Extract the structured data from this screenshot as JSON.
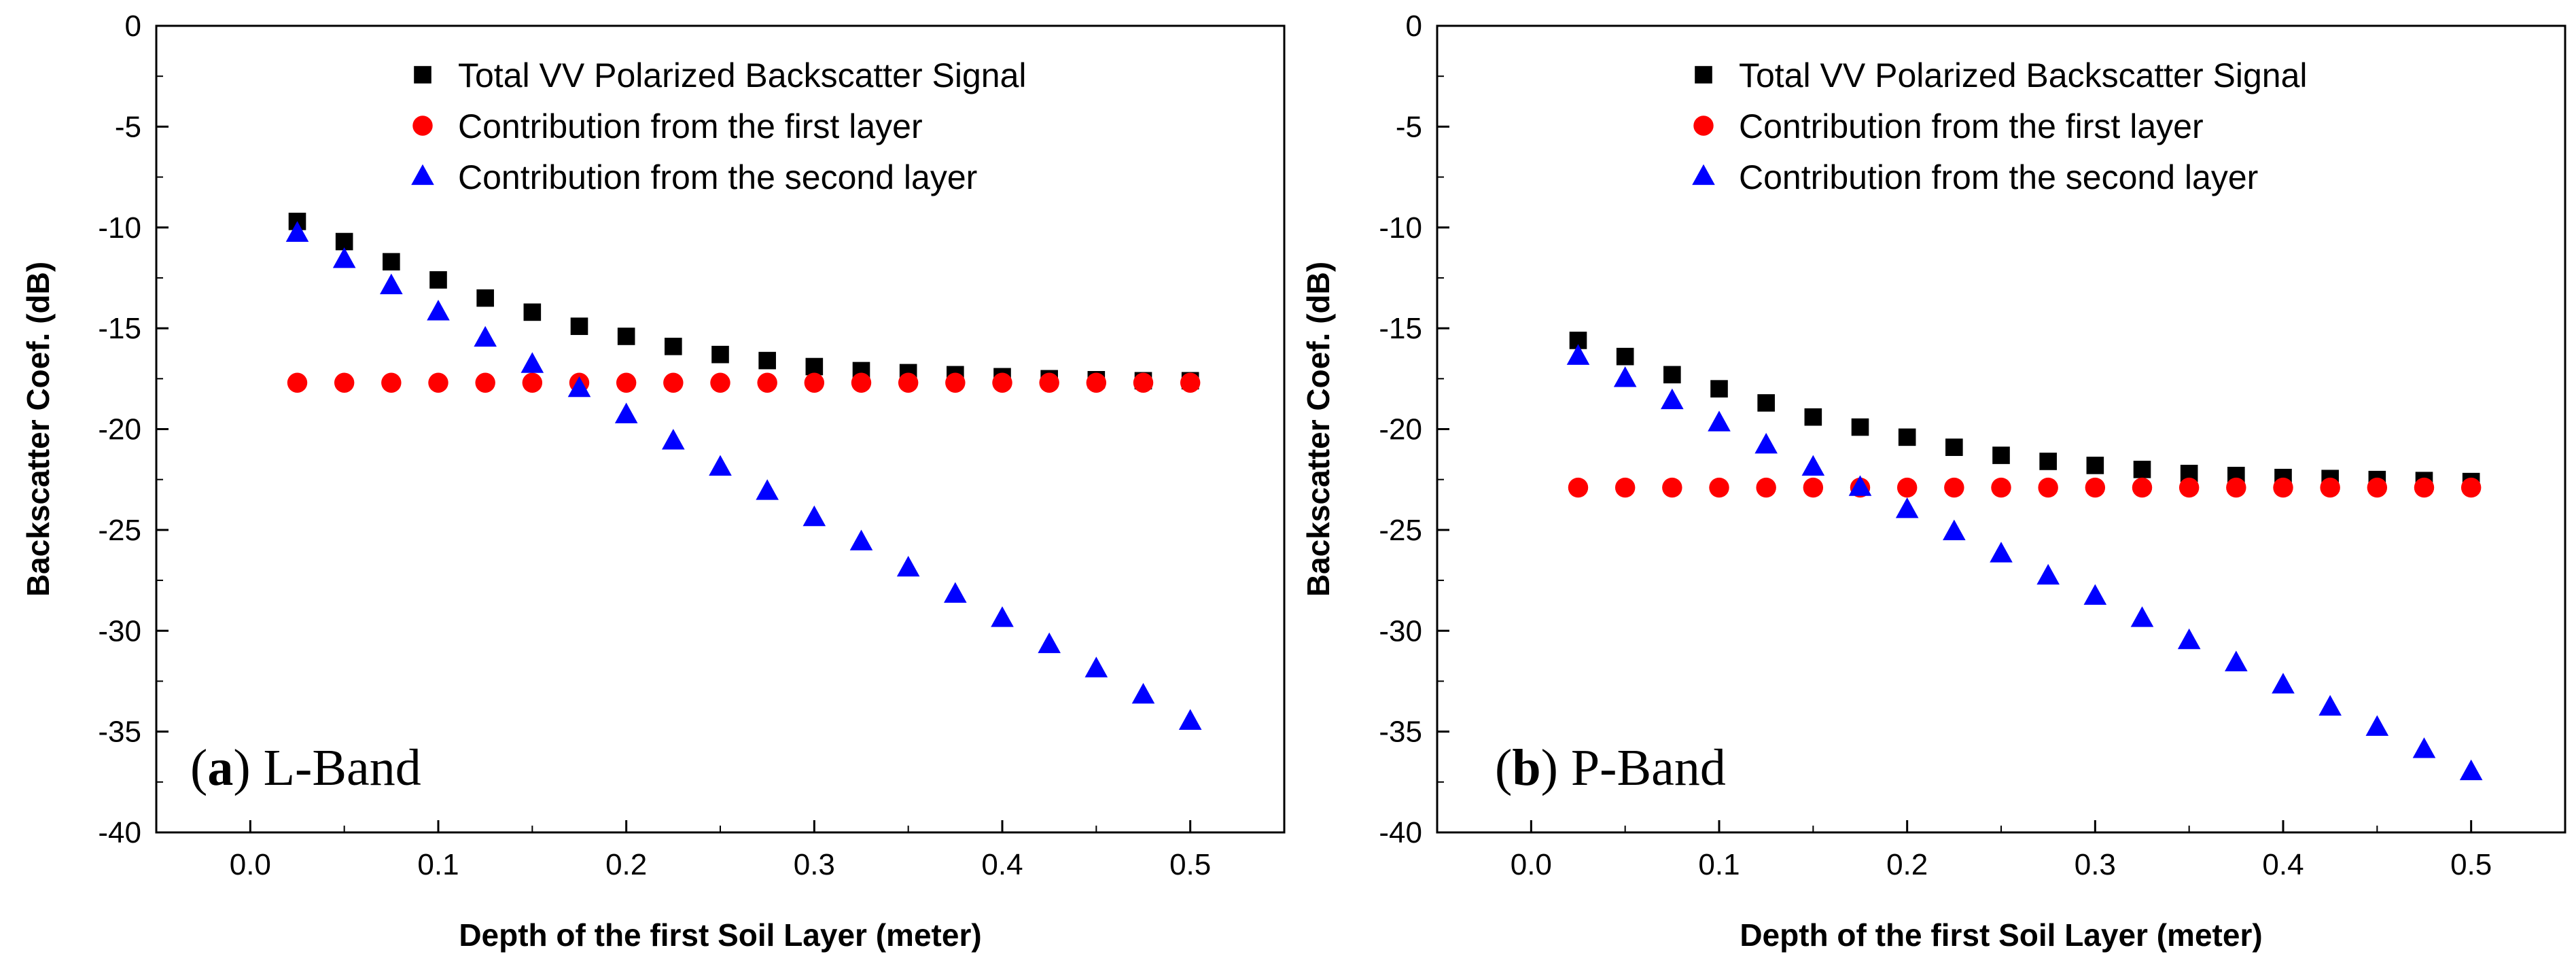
{
  "chart_data": [
    {
      "type": "scatter",
      "panel_letter": "a",
      "panel_name": "L-Band",
      "xlabel": "Depth of the first Soil Layer (meter)",
      "ylabel": "Backscatter Coef. (dB)",
      "xlim": [
        -0.05,
        0.55
      ],
      "ylim": [
        -40,
        0
      ],
      "xticks": [
        0.0,
        0.1,
        0.2,
        0.3,
        0.4,
        0.5
      ],
      "xtick_labels": [
        "0.0",
        "0.1",
        "0.2",
        "0.3",
        "0.4",
        "0.5"
      ],
      "yticks": [
        0,
        -5,
        -10,
        -15,
        -20,
        -25,
        -30,
        -35,
        -40
      ],
      "ytick_labels": [
        "0",
        "-5",
        "-10",
        "-15",
        "-20",
        "-25",
        "-30",
        "-35",
        "-40"
      ],
      "legend_position": "top",
      "x": [
        0.025,
        0.05,
        0.075,
        0.1,
        0.125,
        0.15,
        0.175,
        0.2,
        0.225,
        0.25,
        0.275,
        0.3,
        0.325,
        0.35,
        0.375,
        0.4,
        0.425,
        0.45,
        0.475,
        0.5
      ],
      "series": [
        {
          "name": "Total VV Polarized Backscatter Signal",
          "marker": "square",
          "color": "#000000",
          "values": [
            -9.7,
            -10.7,
            -11.7,
            -12.6,
            -13.5,
            -14.2,
            -14.9,
            -15.4,
            -15.9,
            -16.3,
            -16.6,
            -16.9,
            -17.1,
            -17.2,
            -17.3,
            -17.4,
            -17.5,
            -17.55,
            -17.6,
            -17.6
          ]
        },
        {
          "name": "Contribution from the first layer",
          "marker": "circle",
          "color": "#ff0000",
          "values": [
            -17.7,
            -17.7,
            -17.7,
            -17.7,
            -17.7,
            -17.7,
            -17.7,
            -17.7,
            -17.7,
            -17.7,
            -17.7,
            -17.7,
            -17.7,
            -17.7,
            -17.7,
            -17.7,
            -17.7,
            -17.7,
            -17.7,
            -17.7
          ]
        },
        {
          "name": "Contribution from the second layer",
          "marker": "triangle",
          "color": "#0000ff",
          "values": [
            -10.3,
            -11.6,
            -12.9,
            -14.2,
            -15.5,
            -16.8,
            -18.0,
            -19.3,
            -20.6,
            -21.9,
            -23.1,
            -24.4,
            -25.6,
            -26.9,
            -28.2,
            -29.4,
            -30.7,
            -31.9,
            -33.2,
            -34.5
          ]
        }
      ]
    },
    {
      "type": "scatter",
      "panel_letter": "b",
      "panel_name": "P-Band",
      "xlabel": "Depth of the first Soil Layer (meter)",
      "ylabel": "Backscatter Coef. (dB)",
      "xlim": [
        -0.05,
        0.55
      ],
      "ylim": [
        -40,
        0
      ],
      "xticks": [
        0.0,
        0.1,
        0.2,
        0.3,
        0.4,
        0.5
      ],
      "xtick_labels": [
        "0.0",
        "0.1",
        "0.2",
        "0.3",
        "0.4",
        "0.5"
      ],
      "yticks": [
        0,
        -5,
        -10,
        -15,
        -20,
        -25,
        -30,
        -35,
        -40
      ],
      "ytick_labels": [
        "0",
        "-5",
        "-10",
        "-15",
        "-20",
        "-25",
        "-30",
        "-35",
        "-40"
      ],
      "legend_position": "top",
      "x": [
        0.025,
        0.05,
        0.075,
        0.1,
        0.125,
        0.15,
        0.175,
        0.2,
        0.225,
        0.25,
        0.275,
        0.3,
        0.325,
        0.35,
        0.375,
        0.4,
        0.425,
        0.45,
        0.475,
        0.5
      ],
      "series": [
        {
          "name": "Total VV Polarized Backscatter Signal",
          "marker": "square",
          "color": "#000000",
          "values": [
            -15.6,
            -16.4,
            -17.3,
            -18.0,
            -18.7,
            -19.4,
            -19.9,
            -20.4,
            -20.9,
            -21.3,
            -21.6,
            -21.8,
            -22.0,
            -22.2,
            -22.3,
            -22.4,
            -22.45,
            -22.5,
            -22.55,
            -22.6
          ]
        },
        {
          "name": "Contribution from the first layer",
          "marker": "circle",
          "color": "#ff0000",
          "values": [
            -22.9,
            -22.9,
            -22.9,
            -22.9,
            -22.9,
            -22.9,
            -22.9,
            -22.9,
            -22.9,
            -22.9,
            -22.9,
            -22.9,
            -22.9,
            -22.9,
            -22.9,
            -22.9,
            -22.9,
            -22.9,
            -22.9,
            -22.9
          ]
        },
        {
          "name": "Contribution from the second layer",
          "marker": "triangle",
          "color": "#0000ff",
          "values": [
            -16.4,
            -17.5,
            -18.6,
            -19.7,
            -20.8,
            -21.9,
            -22.9,
            -24.0,
            -25.1,
            -26.2,
            -27.3,
            -28.3,
            -29.4,
            -30.5,
            -31.6,
            -32.7,
            -33.8,
            -34.8,
            -35.9,
            -37.0
          ]
        }
      ]
    }
  ]
}
